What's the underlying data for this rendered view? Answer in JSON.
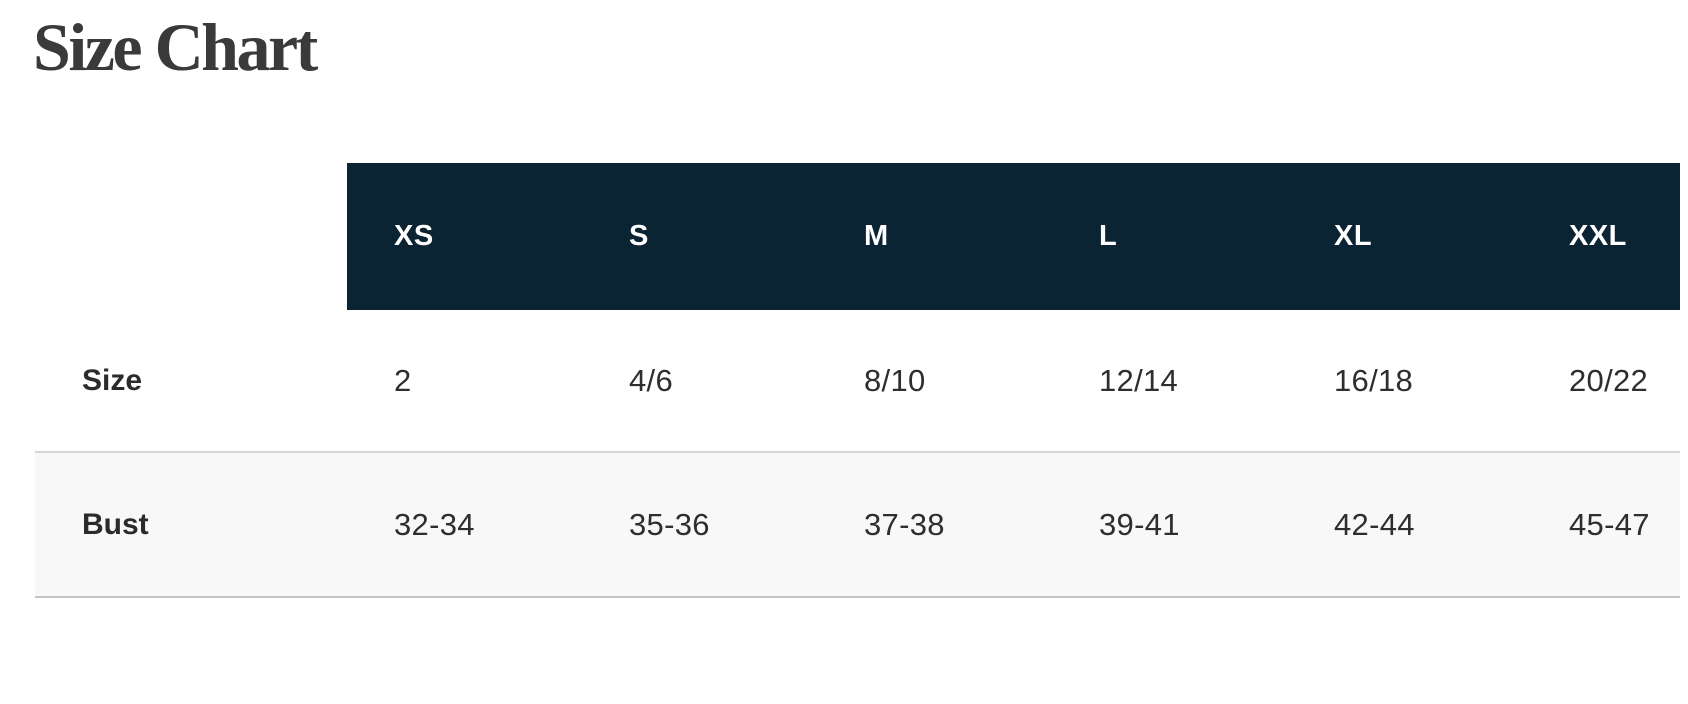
{
  "page": {
    "title": "Size Chart"
  },
  "size_chart": {
    "columns": [
      "XS",
      "S",
      "M",
      "L",
      "XL",
      "XXL"
    ],
    "rows": [
      {
        "label": "Size",
        "values": [
          "2",
          "4/6",
          "8/10",
          "12/14",
          "16/18",
          "20/22"
        ]
      },
      {
        "label": "Bust",
        "values": [
          "32-34",
          "35-36",
          "37-38",
          "39-41",
          "42-44",
          "45-47"
        ]
      }
    ]
  },
  "colors": {
    "header_bg": "#0a2433",
    "header_text": "#ffffff",
    "alt_row_bg": "#f8f8f8",
    "row_border_top": "#d6d6d6",
    "row_border_bottom": "#c5c5c5",
    "title_text": "#3a3a3a",
    "label_text": "#2b2b2b",
    "value_text": "#2e2e2e"
  }
}
